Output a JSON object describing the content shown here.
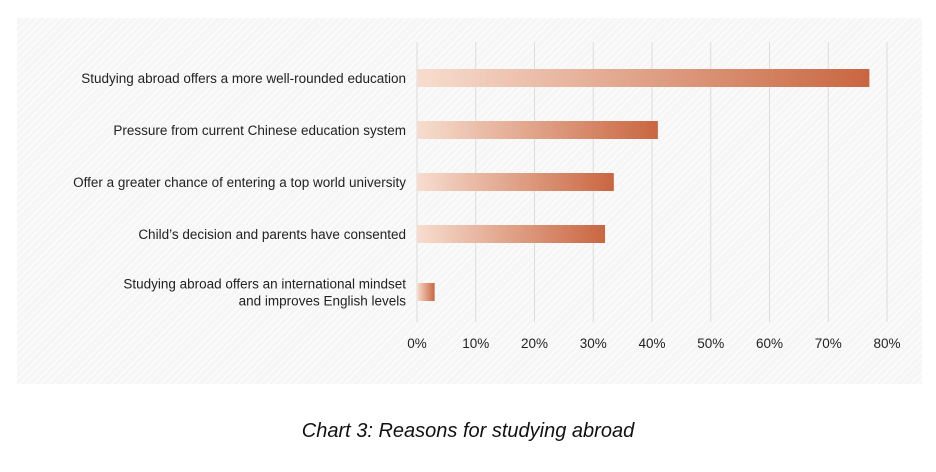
{
  "caption": "Chart 3: Reasons for studying abroad",
  "colors": {
    "bar_start": "#f7ddcf",
    "bar_end": "#c96640",
    "grid": "#dcdcdc",
    "text": "#222222"
  },
  "chart_data": {
    "type": "bar",
    "orientation": "horizontal",
    "categories": [
      [
        "Studying abroad offers a more well-rounded education"
      ],
      [
        "Pressure from current Chinese education system"
      ],
      [
        "Offer a greater chance of entering a top world university"
      ],
      [
        "Child’s decision and parents have consented"
      ],
      [
        "Studying abroad offers an international mindset",
        "and improves English levels"
      ]
    ],
    "values": [
      77,
      41,
      33.5,
      32,
      3
    ],
    "xlim": [
      0,
      80
    ],
    "xticks": [
      0,
      10,
      20,
      30,
      40,
      50,
      60,
      70,
      80
    ],
    "xtick_labels": [
      "0%",
      "10%",
      "20%",
      "30%",
      "40%",
      "50%",
      "60%",
      "70%",
      "80%"
    ],
    "grid": "vertical"
  }
}
